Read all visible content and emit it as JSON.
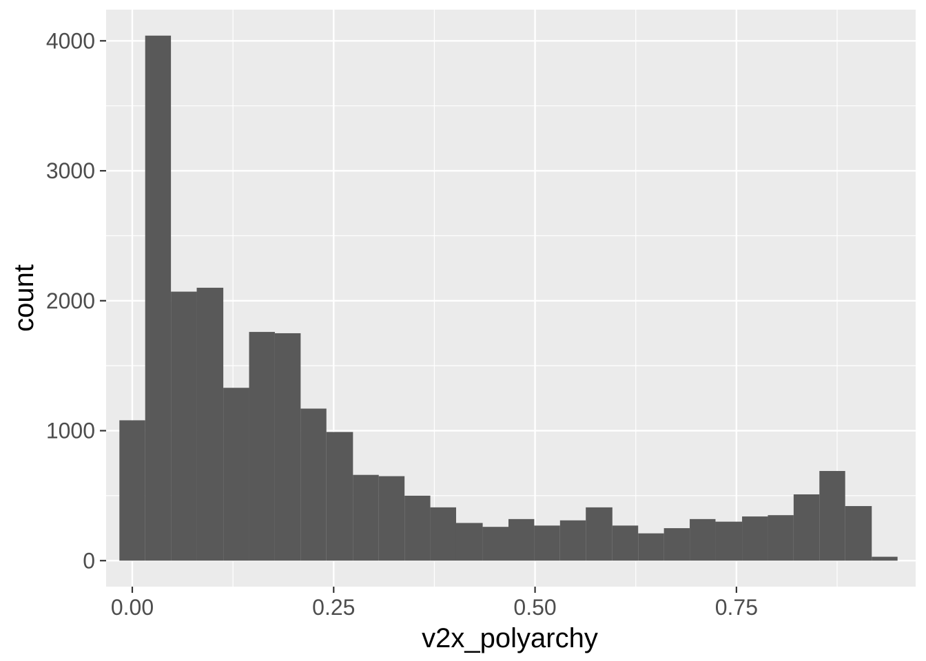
{
  "chart_data": {
    "type": "bar",
    "subtype": "histogram",
    "xlabel": "v2x_polyarchy",
    "ylabel": "count",
    "xlim": [
      -0.0325,
      0.9725
    ],
    "ylim": [
      -200,
      4240
    ],
    "x_ticks": [
      0.0,
      0.25,
      0.5,
      0.75
    ],
    "x_tick_labels": [
      "0.00",
      "0.25",
      "0.50",
      "0.75"
    ],
    "y_ticks": [
      0,
      1000,
      2000,
      3000,
      4000
    ],
    "y_tick_labels": [
      "0",
      "1000",
      "2000",
      "3000",
      "4000"
    ],
    "grid": true,
    "legend": "none",
    "colors": {
      "panel": "#ebebeb",
      "grid": "#ffffff",
      "bar": "#595959"
    },
    "bin_width": 0.0322,
    "bins": [
      {
        "x0": -0.016,
        "x1": 0.016,
        "count": 1080
      },
      {
        "x0": 0.016,
        "x1": 0.048,
        "count": 4040
      },
      {
        "x0": 0.048,
        "x1": 0.08,
        "count": 2070
      },
      {
        "x0": 0.08,
        "x1": 0.113,
        "count": 2100
      },
      {
        "x0": 0.113,
        "x1": 0.145,
        "count": 1330
      },
      {
        "x0": 0.145,
        "x1": 0.177,
        "count": 1760
      },
      {
        "x0": 0.177,
        "x1": 0.209,
        "count": 1750
      },
      {
        "x0": 0.209,
        "x1": 0.241,
        "count": 1170
      },
      {
        "x0": 0.241,
        "x1": 0.274,
        "count": 990
      },
      {
        "x0": 0.274,
        "x1": 0.306,
        "count": 660
      },
      {
        "x0": 0.306,
        "x1": 0.338,
        "count": 650
      },
      {
        "x0": 0.338,
        "x1": 0.37,
        "count": 500
      },
      {
        "x0": 0.37,
        "x1": 0.402,
        "count": 410
      },
      {
        "x0": 0.402,
        "x1": 0.435,
        "count": 290
      },
      {
        "x0": 0.435,
        "x1": 0.467,
        "count": 260
      },
      {
        "x0": 0.467,
        "x1": 0.499,
        "count": 320
      },
      {
        "x0": 0.499,
        "x1": 0.531,
        "count": 270
      },
      {
        "x0": 0.531,
        "x1": 0.563,
        "count": 310
      },
      {
        "x0": 0.563,
        "x1": 0.596,
        "count": 410
      },
      {
        "x0": 0.596,
        "x1": 0.628,
        "count": 270
      },
      {
        "x0": 0.628,
        "x1": 0.66,
        "count": 210
      },
      {
        "x0": 0.66,
        "x1": 0.692,
        "count": 250
      },
      {
        "x0": 0.692,
        "x1": 0.724,
        "count": 320
      },
      {
        "x0": 0.724,
        "x1": 0.757,
        "count": 300
      },
      {
        "x0": 0.757,
        "x1": 0.789,
        "count": 340
      },
      {
        "x0": 0.789,
        "x1": 0.821,
        "count": 350
      },
      {
        "x0": 0.821,
        "x1": 0.853,
        "count": 510
      },
      {
        "x0": 0.853,
        "x1": 0.885,
        "count": 690
      },
      {
        "x0": 0.885,
        "x1": 0.918,
        "count": 420
      },
      {
        "x0": 0.918,
        "x1": 0.95,
        "count": 30
      }
    ]
  }
}
